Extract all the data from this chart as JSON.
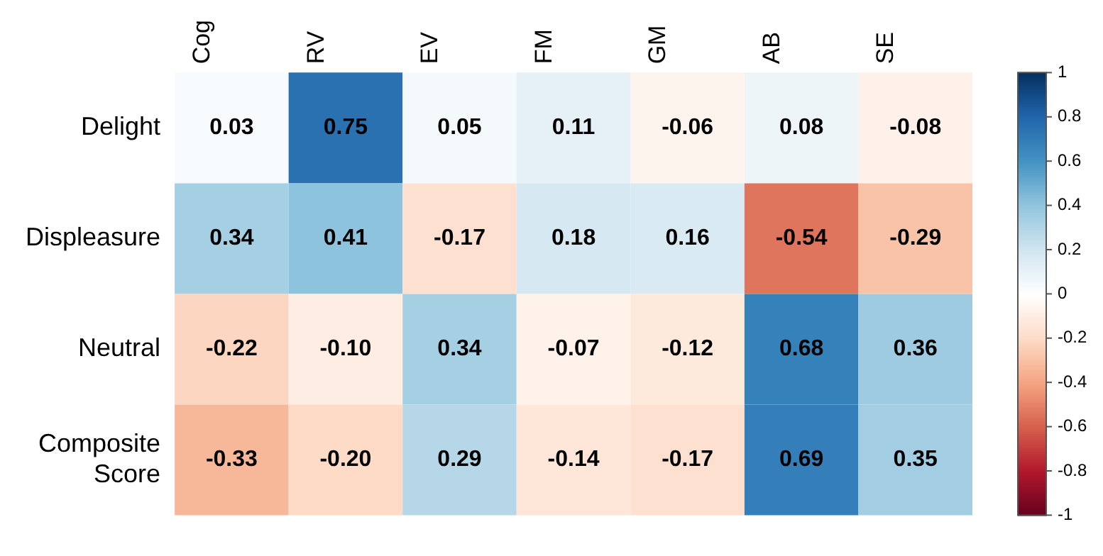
{
  "chart_data": {
    "type": "heatmap",
    "categories": [
      "Cog",
      "RV",
      "EV",
      "FM",
      "GM",
      "AB",
      "SE"
    ],
    "y_categories": [
      "Delight",
      "Displeasure",
      "Neutral",
      "Composite Score"
    ],
    "cells": [
      [
        0.03,
        0.75,
        0.05,
        0.11,
        -0.06,
        0.08,
        -0.08
      ],
      [
        0.34,
        0.41,
        -0.17,
        0.18,
        0.16,
        -0.54,
        -0.29
      ],
      [
        -0.22,
        -0.1,
        0.34,
        -0.07,
        -0.12,
        0.68,
        0.36
      ],
      [
        -0.33,
        -0.2,
        0.29,
        -0.14,
        -0.17,
        0.69,
        0.35
      ]
    ],
    "cell_labels": [
      [
        "0.03",
        "0.75",
        "0.05",
        "0.11",
        "-0.06",
        "0.08",
        "-0.08"
      ],
      [
        "0.34",
        "0.41",
        "-0.17",
        "0.18",
        "0.16",
        "-0.54",
        "-0.29"
      ],
      [
        "-0.22",
        "-0.10",
        "0.34",
        "-0.07",
        "-0.12",
        "0.68",
        "0.36"
      ],
      [
        "-0.33",
        "-0.20",
        "0.29",
        "-0.14",
        "-0.17",
        "0.69",
        "0.35"
      ]
    ],
    "clim": [
      -1,
      1
    ],
    "cticks": [
      -1,
      -0.8,
      -0.6,
      -0.4,
      -0.2,
      0,
      0.2,
      0.4,
      0.6,
      0.8,
      1
    ]
  }
}
